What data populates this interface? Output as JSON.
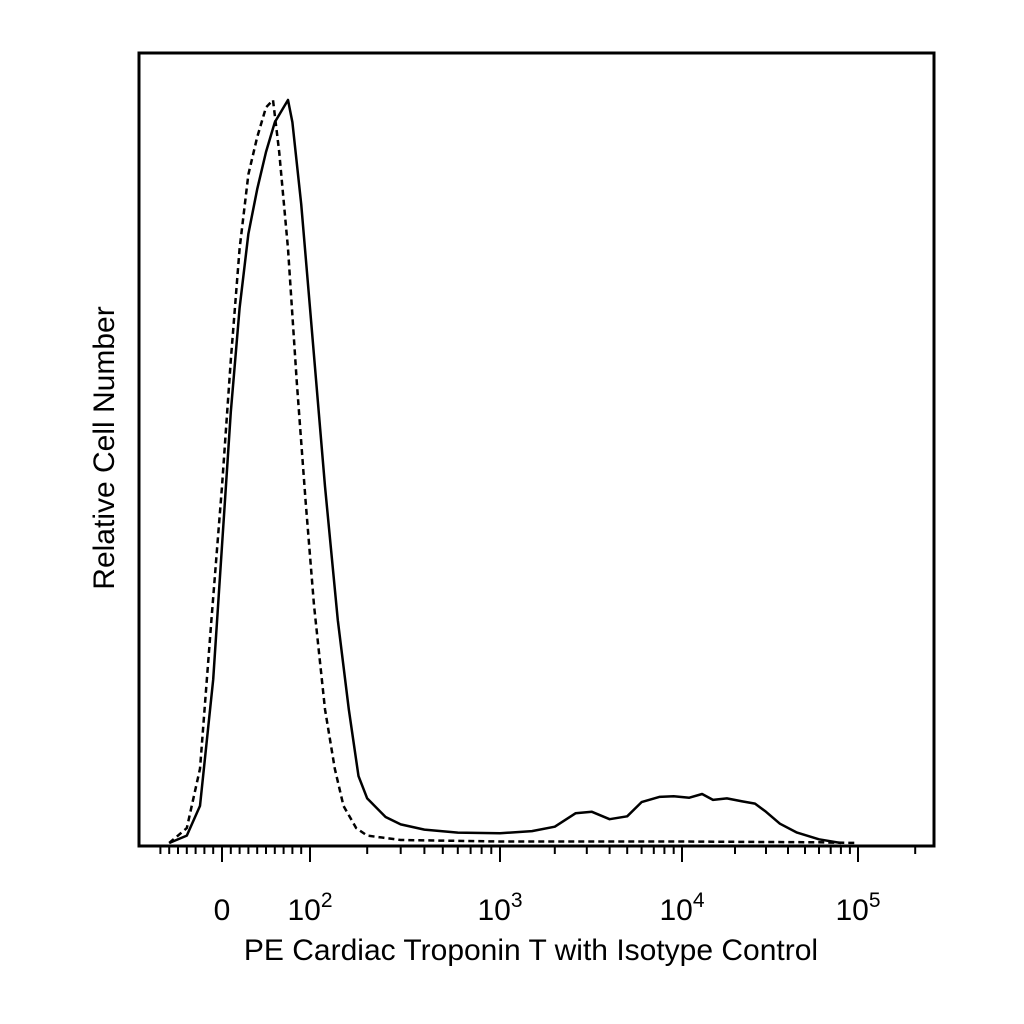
{
  "chart_data": {
    "type": "line",
    "title": "",
    "xlabel": "PE Cardiac Troponin T with Isotype Control",
    "ylabel": "Relative Cell Number",
    "x_scale": "biexponential (linear near 0, log above ~10^2)",
    "x_ticks": [
      {
        "label": "0",
        "base": "0",
        "exp": "",
        "value": 0
      },
      {
        "label": "10^2",
        "base": "10",
        "exp": "2",
        "value": 100
      },
      {
        "label": "10^3",
        "base": "10",
        "exp": "3",
        "value": 1000
      },
      {
        "label": "10^4",
        "base": "10",
        "exp": "4",
        "value": 10000
      },
      {
        "label": "10^5",
        "base": "10",
        "exp": "5",
        "value": 100000
      }
    ],
    "ylim": [
      0,
      100
    ],
    "grid": false,
    "legend": "none",
    "series": [
      {
        "style": "solid",
        "points": [
          [
            -60,
            0
          ],
          [
            -40,
            1
          ],
          [
            -25,
            5
          ],
          [
            -10,
            22
          ],
          [
            0,
            40
          ],
          [
            10,
            58
          ],
          [
            20,
            72
          ],
          [
            30,
            82
          ],
          [
            40,
            88
          ],
          [
            50,
            93
          ],
          [
            60,
            97
          ],
          [
            70,
            99
          ],
          [
            75,
            100
          ],
          [
            80,
            97
          ],
          [
            90,
            86
          ],
          [
            100,
            72
          ],
          [
            120,
            48
          ],
          [
            140,
            30
          ],
          [
            160,
            18
          ],
          [
            180,
            9
          ],
          [
            200,
            6
          ],
          [
            250,
            3.5
          ],
          [
            300,
            2.5
          ],
          [
            400,
            1.8
          ],
          [
            600,
            1.4
          ],
          [
            1000,
            1.3
          ],
          [
            1500,
            1.6
          ],
          [
            2000,
            2.2
          ],
          [
            2600,
            4
          ],
          [
            3200,
            4.2
          ],
          [
            4000,
            3.2
          ],
          [
            5000,
            3.6
          ],
          [
            6000,
            5.5
          ],
          [
            7500,
            6.2
          ],
          [
            9000,
            6.3
          ],
          [
            11000,
            6.1
          ],
          [
            13000,
            6.6
          ],
          [
            15000,
            5.8
          ],
          [
            18000,
            6.0
          ],
          [
            22000,
            5.6
          ],
          [
            26000,
            5.3
          ],
          [
            30000,
            4.2
          ],
          [
            36000,
            2.6
          ],
          [
            45000,
            1.4
          ],
          [
            60000,
            0.5
          ],
          [
            80000,
            0
          ]
        ]
      },
      {
        "style": "dashed",
        "points": [
          [
            -60,
            0
          ],
          [
            -40,
            2
          ],
          [
            -25,
            10
          ],
          [
            -12,
            30
          ],
          [
            0,
            48
          ],
          [
            10,
            65
          ],
          [
            20,
            80
          ],
          [
            30,
            90
          ],
          [
            40,
            95
          ],
          [
            50,
            99
          ],
          [
            58,
            100
          ],
          [
            65,
            93
          ],
          [
            75,
            80
          ],
          [
            85,
            62
          ],
          [
            95,
            46
          ],
          [
            105,
            32
          ],
          [
            120,
            18
          ],
          [
            135,
            10
          ],
          [
            150,
            5
          ],
          [
            175,
            2
          ],
          [
            200,
            1
          ],
          [
            300,
            0.4
          ],
          [
            1000,
            0.2
          ],
          [
            10000,
            0.2
          ],
          [
            60000,
            0.1
          ],
          [
            100000,
            0
          ]
        ]
      }
    ]
  }
}
